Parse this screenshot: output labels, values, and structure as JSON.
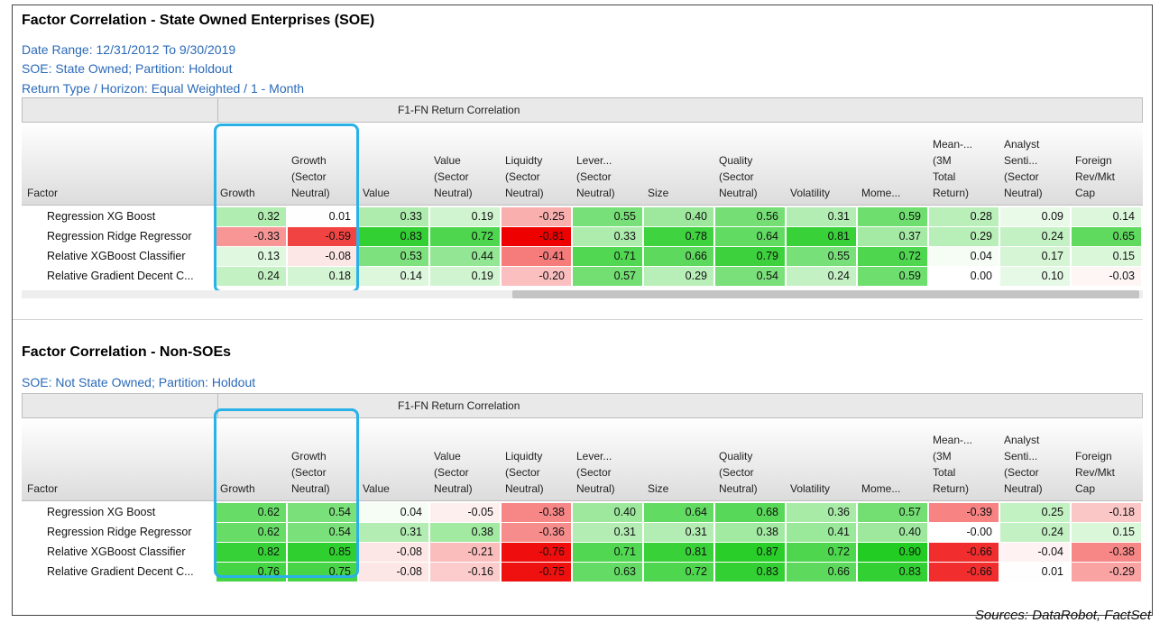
{
  "panels": [
    {
      "title": "Factor Correlation - State Owned Enterprises (SOE)",
      "meta": [
        "Date Range: 12/31/2012 To 9/30/2019",
        "SOE: State Owned; Partition: Holdout",
        "Return Type / Horizon: Equal Weighted / 1 - Month"
      ],
      "group_header": "F1-FN Return Correlation",
      "factor_header": "Factor",
      "columns": [
        "Growth",
        "Growth\n(Sector\nNeutral)",
        "Value",
        "Value\n(Sector\nNeutral)",
        "Liquidty\n(Sector\nNeutral)",
        "Lever...\n(Sector\nNeutral)",
        "Size",
        "Quality\n(Sector\nNeutral)",
        "Volatility",
        "Mome...",
        "Mean-...\n(3M\nTotal\nReturn)",
        "Analyst\nSenti...\n(Sector\nNeutral)",
        "Foreign\nRev/Mkt\nCap"
      ],
      "rows": [
        {
          "label": "Regression XG Boost",
          "values": [
            "0.32",
            "0.01",
            "0.33",
            "0.19",
            "-0.25",
            "0.55",
            "0.40",
            "0.56",
            "0.31",
            "0.59",
            "0.28",
            "0.09",
            "0.14"
          ]
        },
        {
          "label": "Regression Ridge Regressor",
          "values": [
            "-0.33",
            "-0.59",
            "0.83",
            "0.72",
            "-0.81",
            "0.33",
            "0.78",
            "0.64",
            "0.81",
            "0.37",
            "0.29",
            "0.24",
            "0.65"
          ]
        },
        {
          "label": "Relative XGBoost Classifier",
          "values": [
            "0.13",
            "-0.08",
            "0.53",
            "0.44",
            "-0.41",
            "0.71",
            "0.66",
            "0.79",
            "0.55",
            "0.72",
            "0.04",
            "0.17",
            "0.15"
          ]
        },
        {
          "label": "Relative Gradient Decent C...",
          "values": [
            "0.24",
            "0.18",
            "0.14",
            "0.19",
            "-0.20",
            "0.57",
            "0.29",
            "0.54",
            "0.24",
            "0.59",
            "0.00",
            "0.10",
            "-0.03"
          ]
        }
      ]
    },
    {
      "title": "Factor Correlation - Non-SOEs",
      "meta": [
        "SOE: Not State Owned; Partition: Holdout"
      ],
      "group_header": "F1-FN Return Correlation",
      "factor_header": "Factor",
      "columns": [
        "Growth",
        "Growth\n(Sector\nNeutral)",
        "Value",
        "Value\n(Sector\nNeutral)",
        "Liquidty\n(Sector\nNeutral)",
        "Lever...\n(Sector\nNeutral)",
        "Size",
        "Quality\n(Sector\nNeutral)",
        "Volatility",
        "Mome...",
        "Mean-...\n(3M\nTotal\nReturn)",
        "Analyst\nSenti...\n(Sector\nNeutral)",
        "Foreign\nRev/Mkt\nCap"
      ],
      "rows": [
        {
          "label": "Regression XG Boost",
          "values": [
            "0.62",
            "0.54",
            "0.04",
            "-0.05",
            "-0.38",
            "0.40",
            "0.64",
            "0.68",
            "0.36",
            "0.57",
            "-0.39",
            "0.25",
            "-0.18"
          ]
        },
        {
          "label": "Regression Ridge Regressor",
          "values": [
            "0.62",
            "0.54",
            "0.31",
            "0.38",
            "-0.36",
            "0.31",
            "0.31",
            "0.38",
            "0.41",
            "0.40",
            "-0.00",
            "0.24",
            "0.15"
          ]
        },
        {
          "label": "Relative XGBoost Classifier",
          "values": [
            "0.82",
            "0.85",
            "-0.08",
            "-0.21",
            "-0.76",
            "0.71",
            "0.81",
            "0.87",
            "0.72",
            "0.90",
            "-0.66",
            "-0.04",
            "-0.38"
          ]
        },
        {
          "label": "Relative Gradient Decent C...",
          "values": [
            "0.76",
            "0.75",
            "-0.08",
            "-0.16",
            "-0.75",
            "0.63",
            "0.72",
            "0.83",
            "0.66",
            "0.83",
            "-0.66",
            "0.01",
            "-0.29"
          ]
        }
      ]
    }
  ],
  "source": "Sources: DataRobot, FactSet",
  "colors": {
    "positive": "#22cc22",
    "negative": "#ee0000",
    "highlight": "#2ab2e8",
    "meta_text": "#2a6ab8"
  },
  "chart_data": [
    {
      "type": "heatmap",
      "title": "Factor Correlation - State Owned Enterprises (SOE)",
      "columns": [
        "Growth",
        "Growth (Sector Neutral)",
        "Value",
        "Value (Sector Neutral)",
        "Liquidty (Sector Neutral)",
        "Lever... (Sector Neutral)",
        "Size",
        "Quality (Sector Neutral)",
        "Volatility",
        "Mome...",
        "Mean-... (3M Total Return)",
        "Analyst Senti... (Sector Neutral)",
        "Foreign Rev/Mkt Cap"
      ],
      "rows": [
        "Regression XG Boost",
        "Regression Ridge Regressor",
        "Relative XGBoost Classifier",
        "Relative Gradient Decent C..."
      ],
      "values": [
        [
          0.32,
          0.01,
          0.33,
          0.19,
          -0.25,
          0.55,
          0.4,
          0.56,
          0.31,
          0.59,
          0.28,
          0.09,
          0.14
        ],
        [
          -0.33,
          -0.59,
          0.83,
          0.72,
          -0.81,
          0.33,
          0.78,
          0.64,
          0.81,
          0.37,
          0.29,
          0.24,
          0.65
        ],
        [
          0.13,
          -0.08,
          0.53,
          0.44,
          -0.41,
          0.71,
          0.66,
          0.79,
          0.55,
          0.72,
          0.04,
          0.17,
          0.15
        ],
        [
          0.24,
          0.18,
          0.14,
          0.19,
          -0.2,
          0.57,
          0.29,
          0.54,
          0.24,
          0.59,
          0.0,
          0.1,
          -0.03
        ]
      ]
    },
    {
      "type": "heatmap",
      "title": "Factor Correlation - Non-SOEs",
      "columns": [
        "Growth",
        "Growth (Sector Neutral)",
        "Value",
        "Value (Sector Neutral)",
        "Liquidty (Sector Neutral)",
        "Lever... (Sector Neutral)",
        "Size",
        "Quality (Sector Neutral)",
        "Volatility",
        "Mome...",
        "Mean-... (3M Total Return)",
        "Analyst Senti... (Sector Neutral)",
        "Foreign Rev/Mkt Cap"
      ],
      "rows": [
        "Regression XG Boost",
        "Regression Ridge Regressor",
        "Relative XGBoost Classifier",
        "Relative Gradient Decent C..."
      ],
      "values": [
        [
          0.62,
          0.54,
          0.04,
          -0.05,
          -0.38,
          0.4,
          0.64,
          0.68,
          0.36,
          0.57,
          -0.39,
          0.25,
          -0.18
        ],
        [
          0.62,
          0.54,
          0.31,
          0.38,
          -0.36,
          0.31,
          0.31,
          0.38,
          0.41,
          0.4,
          -0.0,
          0.24,
          0.15
        ],
        [
          0.82,
          0.85,
          -0.08,
          -0.21,
          -0.76,
          0.71,
          0.81,
          0.87,
          0.72,
          0.9,
          -0.66,
          -0.04,
          -0.38
        ],
        [
          0.76,
          0.75,
          -0.08,
          -0.16,
          -0.75,
          0.63,
          0.72,
          0.83,
          0.66,
          0.83,
          -0.66,
          0.01,
          -0.29
        ]
      ]
    }
  ]
}
